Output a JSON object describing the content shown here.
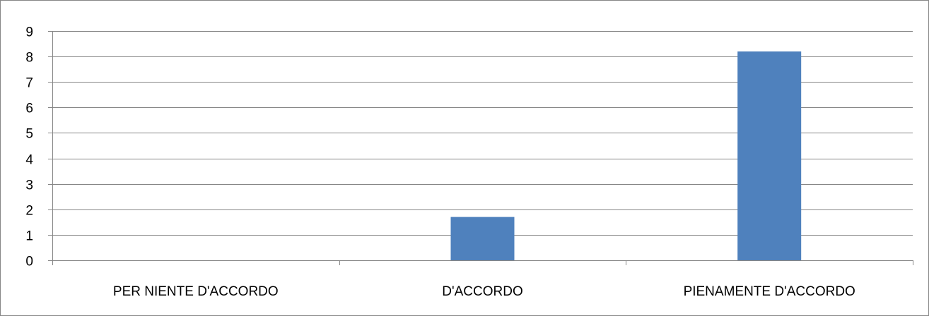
{
  "chart_data": {
    "type": "bar",
    "categories": [
      "PER NIENTE D'ACCORDO",
      "D'ACCORDO",
      "PIENAMENTE D'ACCORDO"
    ],
    "values": [
      0,
      1.7,
      8.2
    ],
    "ylim": [
      0,
      9
    ],
    "yticks": [
      0,
      1,
      2,
      3,
      4,
      5,
      6,
      7,
      8,
      9
    ],
    "grid": true,
    "legend": "none",
    "colors": {
      "bar": "#4f81bd",
      "grid": "#868686",
      "axis": "#868686",
      "text": "#000000"
    }
  }
}
